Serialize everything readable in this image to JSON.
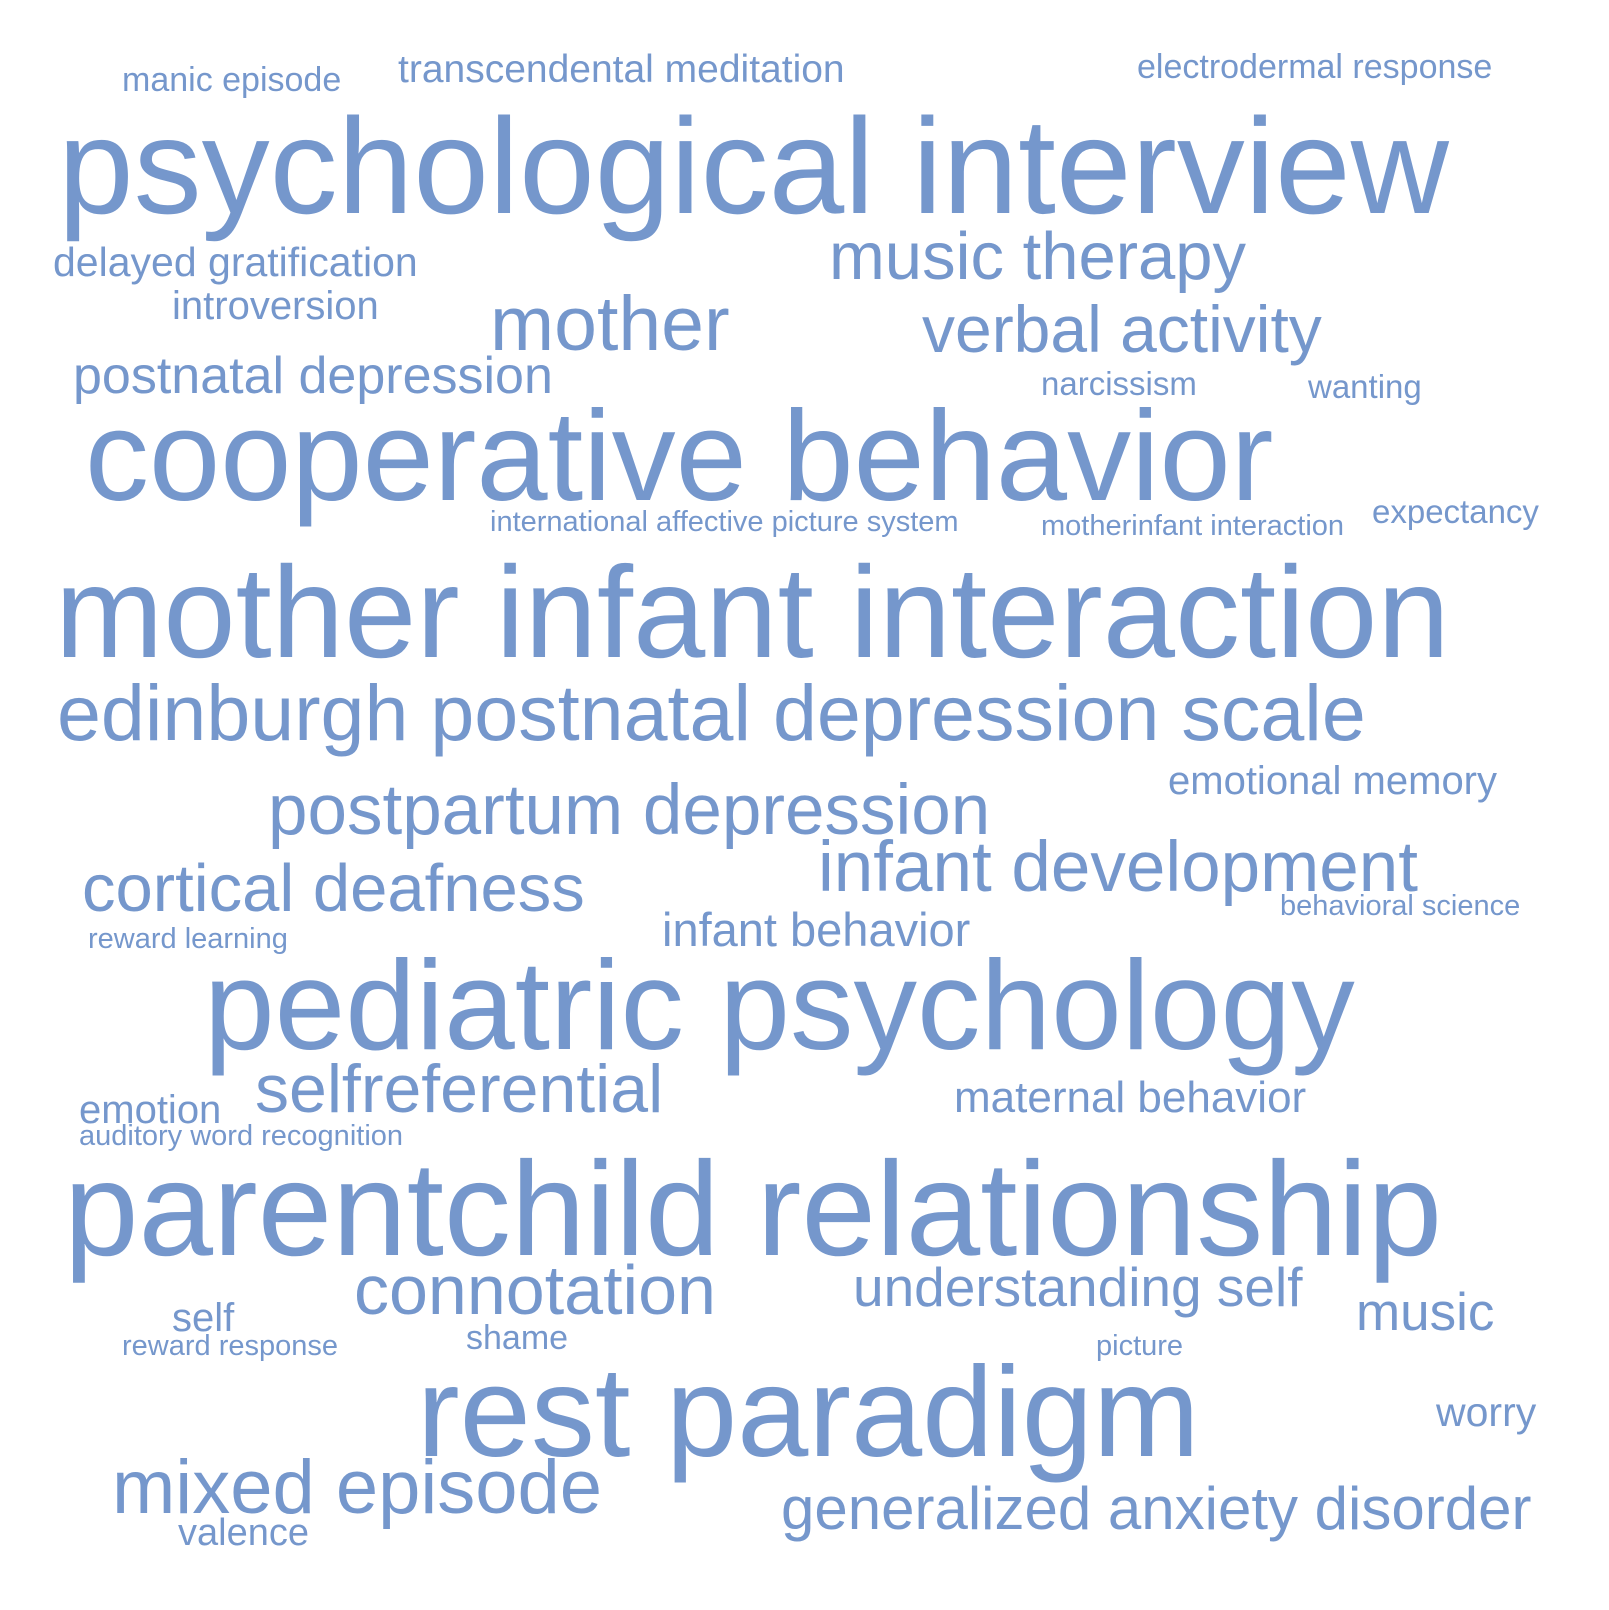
{
  "color": "#7597cc",
  "words": [
    {
      "text": "manic episode"
    },
    {
      "text": "transcendental meditation"
    },
    {
      "text": "electrodermal response"
    },
    {
      "text": "psychological interview"
    },
    {
      "text": "delayed gratification"
    },
    {
      "text": "music therapy"
    },
    {
      "text": "introversion"
    },
    {
      "text": "mother"
    },
    {
      "text": "verbal activity"
    },
    {
      "text": "postnatal depression"
    },
    {
      "text": "narcissism"
    },
    {
      "text": "wanting"
    },
    {
      "text": "cooperative behavior"
    },
    {
      "text": "international affective picture system"
    },
    {
      "text": "motherinfant interaction"
    },
    {
      "text": "expectancy"
    },
    {
      "text": "mother infant interaction"
    },
    {
      "text": "edinburgh postnatal depression scale"
    },
    {
      "text": "emotional memory"
    },
    {
      "text": "postpartum depression"
    },
    {
      "text": "infant development"
    },
    {
      "text": "cortical deafness"
    },
    {
      "text": "behavioral science"
    },
    {
      "text": "infant behavior"
    },
    {
      "text": "reward learning"
    },
    {
      "text": "pediatric psychology"
    },
    {
      "text": "selfreferential"
    },
    {
      "text": "maternal behavior"
    },
    {
      "text": "emotion"
    },
    {
      "text": "auditory word recognition"
    },
    {
      "text": "parentchild relationship"
    },
    {
      "text": "connotation"
    },
    {
      "text": "understanding self"
    },
    {
      "text": "music"
    },
    {
      "text": "self"
    },
    {
      "text": "reward response"
    },
    {
      "text": "shame"
    },
    {
      "text": "picture"
    },
    {
      "text": "rest paradigm"
    },
    {
      "text": "worry"
    },
    {
      "text": "mixed episode"
    },
    {
      "text": "generalized anxiety disorder"
    },
    {
      "text": "valence"
    }
  ]
}
